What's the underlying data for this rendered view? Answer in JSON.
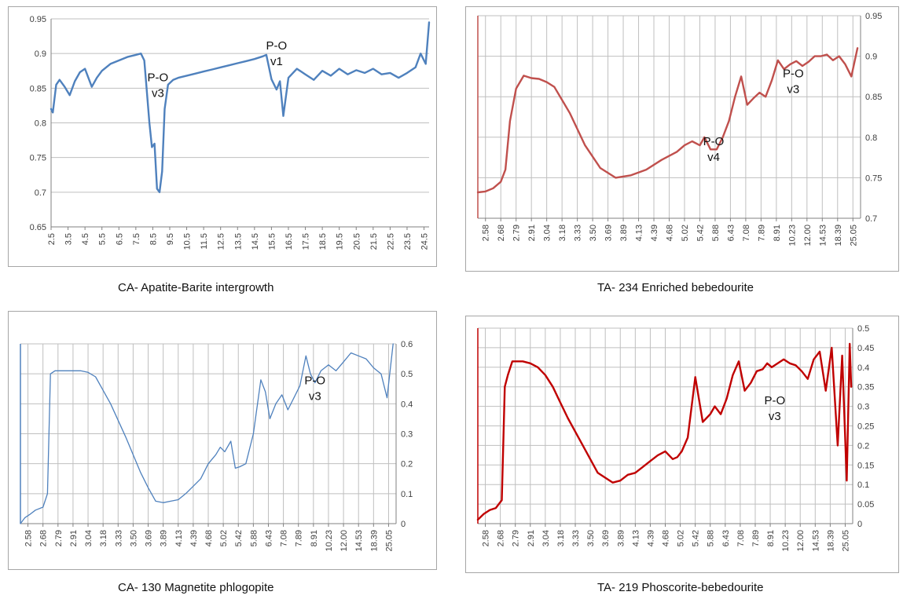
{
  "chart_data": [
    {
      "type": "line",
      "caption": "CA- Apatite-Barite intergrowth",
      "color": "#4F81BD",
      "y_axis_side": "left",
      "ylim": [
        0.65,
        0.95
      ],
      "yticks": [
        "0.65",
        "0.7",
        "0.75",
        "0.8",
        "0.85",
        "0.9",
        "0.95"
      ],
      "xticks": [
        "2.5",
        "3.5",
        "4.5",
        "5.5",
        "6.5",
        "7.5",
        "8.5",
        "9.5",
        "10.5",
        "11.5",
        "12.5",
        "13.5",
        "14.5",
        "15.5",
        "16.5",
        "17.5",
        "18.5",
        "19.5",
        "20.5",
        "21.5",
        "22.5",
        "23.5",
        "24.5"
      ],
      "annotations": [
        {
          "line1": "P-O",
          "line2": "v3",
          "x": 8.8,
          "y": 0.86
        },
        {
          "line1": "P-O",
          "line2": "v1",
          "x": 15.8,
          "y": 0.906
        }
      ],
      "series": [
        {
          "x": [
            2.5,
            2.6,
            2.8,
            3.0,
            3.3,
            3.6,
            3.9,
            4.2,
            4.5,
            4.9,
            5.2,
            5.5,
            6.0,
            6.5,
            7.0,
            7.5,
            7.8,
            8.0,
            8.1,
            8.3,
            8.45,
            8.6,
            8.75,
            8.9,
            9.05,
            9.2,
            9.4,
            9.7,
            10.0,
            10.5,
            11.0,
            11.5,
            12.0,
            12.5,
            13.0,
            13.5,
            14.0,
            14.5,
            15.0,
            15.2,
            15.5,
            15.8,
            16.0,
            16.2,
            16.5,
            17.0,
            17.5,
            18.0,
            18.5,
            19.0,
            19.5,
            20.0,
            20.5,
            21.0,
            21.5,
            22.0,
            22.5,
            23.0,
            23.5,
            24.0,
            24.3,
            24.6,
            24.8
          ],
          "values": [
            0.82,
            0.815,
            0.855,
            0.862,
            0.852,
            0.84,
            0.86,
            0.873,
            0.878,
            0.852,
            0.865,
            0.875,
            0.885,
            0.89,
            0.895,
            0.898,
            0.9,
            0.89,
            0.86,
            0.8,
            0.765,
            0.77,
            0.705,
            0.7,
            0.73,
            0.82,
            0.855,
            0.862,
            0.865,
            0.868,
            0.871,
            0.874,
            0.877,
            0.88,
            0.883,
            0.886,
            0.889,
            0.892,
            0.896,
            0.898,
            0.863,
            0.848,
            0.86,
            0.81,
            0.865,
            0.878,
            0.87,
            0.862,
            0.875,
            0.868,
            0.878,
            0.87,
            0.876,
            0.872,
            0.878,
            0.87,
            0.872,
            0.865,
            0.872,
            0.88,
            0.9,
            0.885,
            0.945
          ]
        }
      ]
    },
    {
      "type": "line",
      "caption": "TA- 234 Enriched bebedourite",
      "color": "#C0504D",
      "y_axis_side": "right",
      "ylim": [
        0.7,
        0.95
      ],
      "yticks": [
        "0.7",
        "0.75",
        "0.8",
        "0.85",
        "0.9",
        "0.95"
      ],
      "xticks": [
        "2.58",
        "2.68",
        "2.79",
        "2.91",
        "3.04",
        "3.18",
        "3.33",
        "3.50",
        "3.69",
        "3.89",
        "4.13",
        "4.39",
        "4.68",
        "5.02",
        "5.42",
        "5.88",
        "6.43",
        "7.08",
        "7.89",
        "8.91",
        "10.23",
        "12.00",
        "14.53",
        "18.39",
        "25.05"
      ],
      "annotations": [
        {
          "line1": "P-O",
          "line2": "v4",
          "x": 15.4,
          "y": 0.79
        },
        {
          "line1": "P-O",
          "line2": "v3",
          "x": 20.6,
          "y": 0.874
        }
      ],
      "series": [
        {
          "x": [
            0.0,
            0.5,
            1.0,
            1.5,
            1.8,
            2.1,
            2.5,
            3.0,
            3.5,
            4.0,
            4.5,
            5.0,
            6.0,
            7.0,
            8.0,
            9.0,
            10.0,
            11.0,
            12.0,
            13.0,
            13.5,
            14.0,
            14.5,
            14.8,
            15.2,
            15.6,
            16.0,
            16.4,
            16.8,
            17.2,
            17.6,
            18.0,
            18.4,
            18.8,
            19.2,
            19.6,
            20.0,
            20.4,
            20.8,
            21.2,
            21.6,
            22.0,
            22.4,
            22.8,
            23.2,
            23.6,
            24.0,
            24.4,
            24.8
          ],
          "values": [
            0.732,
            0.733,
            0.737,
            0.745,
            0.76,
            0.82,
            0.86,
            0.876,
            0.873,
            0.872,
            0.868,
            0.862,
            0.83,
            0.79,
            0.762,
            0.75,
            0.753,
            0.76,
            0.772,
            0.782,
            0.79,
            0.795,
            0.79,
            0.8,
            0.785,
            0.785,
            0.8,
            0.82,
            0.85,
            0.875,
            0.84,
            0.848,
            0.855,
            0.85,
            0.87,
            0.895,
            0.884,
            0.89,
            0.894,
            0.888,
            0.893,
            0.9,
            0.9,
            0.902,
            0.895,
            0.9,
            0.89,
            0.875,
            0.91
          ]
        }
      ]
    },
    {
      "type": "line",
      "caption": "CA- 130 Magnetite phlogopite",
      "color": "#4F81BD",
      "y_axis_side": "right",
      "ylim": [
        0,
        0.6
      ],
      "yticks": [
        "0",
        "0.1",
        "0.2",
        "0.3",
        "0.4",
        "0.5",
        "0.6"
      ],
      "xticks": [
        "2.58",
        "2.68",
        "2.79",
        "2.91",
        "3.04",
        "3.18",
        "3.33",
        "3.50",
        "3.69",
        "3.89",
        "4.13",
        "4.39",
        "4.68",
        "5.02",
        "5.42",
        "5.88",
        "6.43",
        "7.08",
        "7.89",
        "8.91",
        "10.23",
        "12.00",
        "14.53",
        "18.39",
        "25.05"
      ],
      "annotations": [
        {
          "line1": "P-O",
          "line2": "v3",
          "x": 19.6,
          "y": 0.465
        }
      ],
      "series": [
        {
          "x": [
            0.0,
            0.3,
            0.6,
            1.0,
            1.5,
            1.8,
            2.0,
            2.3,
            2.6,
            3.0,
            3.5,
            4.0,
            4.5,
            5.0,
            6.0,
            7.0,
            8.0,
            8.5,
            9.0,
            9.5,
            10.0,
            10.5,
            11.0,
            11.5,
            12.0,
            12.5,
            13.0,
            13.3,
            13.6,
            14.0,
            14.3,
            14.6,
            15.0,
            15.5,
            16.0,
            16.3,
            16.6,
            17.0,
            17.4,
            17.8,
            18.2,
            18.6,
            19.0,
            19.3,
            19.6,
            20.0,
            20.5,
            21.0,
            21.5,
            22.0,
            22.5,
            23.0,
            23.5,
            24.0,
            24.4,
            24.8
          ],
          "values": [
            0.0,
            0.02,
            0.03,
            0.045,
            0.055,
            0.1,
            0.5,
            0.51,
            0.51,
            0.51,
            0.51,
            0.51,
            0.505,
            0.49,
            0.4,
            0.29,
            0.17,
            0.12,
            0.075,
            0.07,
            0.075,
            0.08,
            0.1,
            0.125,
            0.15,
            0.2,
            0.23,
            0.255,
            0.24,
            0.275,
            0.185,
            0.19,
            0.2,
            0.3,
            0.48,
            0.44,
            0.35,
            0.4,
            0.43,
            0.38,
            0.42,
            0.46,
            0.56,
            0.5,
            0.47,
            0.51,
            0.53,
            0.51,
            0.54,
            0.57,
            0.56,
            0.55,
            0.52,
            0.5,
            0.42,
            0.6
          ]
        }
      ]
    },
    {
      "type": "line",
      "caption": "TA- 219 Phoscorite-bebedourite",
      "color": "#C00000",
      "y_axis_side": "right",
      "ylim": [
        0,
        0.5
      ],
      "yticks": [
        "0",
        "0.05",
        "0.1",
        "0.15",
        "0.2",
        "0.25",
        "0.3",
        "0.35",
        "0.4",
        "0.45",
        "0.5"
      ],
      "xticks": [
        "2.58",
        "2.68",
        "2.79",
        "2.91",
        "3.04",
        "3.18",
        "3.33",
        "3.50",
        "3.69",
        "3.89",
        "4.13",
        "4.39",
        "4.68",
        "5.02",
        "5.42",
        "5.88",
        "6.43",
        "7.08",
        "7.89",
        "8.91",
        "10.23",
        "12.00",
        "14.53",
        "18.39",
        "25.05"
      ],
      "annotations": [
        {
          "line1": "P-O",
          "line2": "v3",
          "x": 19.8,
          "y": 0.305
        }
      ],
      "series": [
        {
          "x": [
            0.0,
            0.4,
            0.8,
            1.2,
            1.6,
            1.8,
            2.0,
            2.3,
            2.6,
            3.0,
            3.5,
            4.0,
            4.5,
            5.0,
            5.5,
            6.0,
            7.0,
            8.0,
            9.0,
            9.5,
            10.0,
            10.5,
            11.0,
            11.5,
            12.0,
            12.5,
            13.0,
            13.3,
            13.6,
            14.0,
            14.5,
            15.0,
            15.5,
            15.8,
            16.2,
            16.6,
            17.0,
            17.4,
            17.8,
            18.2,
            18.6,
            19.0,
            19.3,
            19.6,
            20.0,
            20.4,
            20.8,
            21.2,
            21.6,
            22.0,
            22.4,
            22.8,
            23.2,
            23.6,
            24.0,
            24.3,
            24.6,
            24.8,
            24.9
          ],
          "values": [
            0.01,
            0.025,
            0.035,
            0.04,
            0.06,
            0.35,
            0.38,
            0.415,
            0.415,
            0.415,
            0.41,
            0.4,
            0.38,
            0.35,
            0.31,
            0.27,
            0.2,
            0.13,
            0.105,
            0.11,
            0.125,
            0.13,
            0.145,
            0.16,
            0.175,
            0.185,
            0.165,
            0.17,
            0.185,
            0.22,
            0.375,
            0.26,
            0.28,
            0.3,
            0.28,
            0.32,
            0.38,
            0.415,
            0.34,
            0.36,
            0.39,
            0.395,
            0.41,
            0.4,
            0.41,
            0.42,
            0.41,
            0.405,
            0.39,
            0.37,
            0.42,
            0.44,
            0.34,
            0.45,
            0.2,
            0.43,
            0.11,
            0.46,
            0.35
          ]
        }
      ]
    }
  ]
}
